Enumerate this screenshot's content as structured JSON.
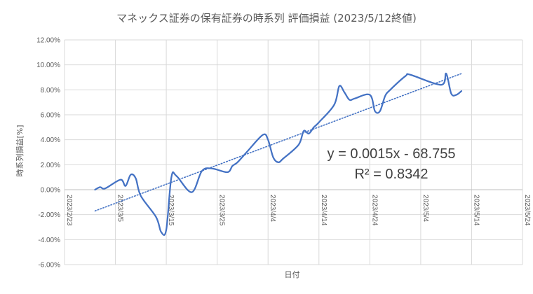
{
  "chart_data": {
    "type": "line",
    "title": "マネックス証券の保有証券の時系列 評価損益 (2023/5/12終値)",
    "xlabel": "日付",
    "ylabel": "時系列損益[%]",
    "ylim": [
      -6,
      12
    ],
    "ystep": 2,
    "ytick_labels": [
      "-6.00%",
      "-4.00%",
      "-2.00%",
      "0.00%",
      "2.00%",
      "4.00%",
      "6.00%",
      "8.00%",
      "10.00%",
      "12.00%"
    ],
    "xlim": [
      "2023/2/23",
      "2023/5/24"
    ],
    "xtick_labels": [
      "2023/2/23",
      "2023/3/5",
      "2023/3/15",
      "2023/3/25",
      "2023/4/4",
      "2023/4/14",
      "2023/4/24",
      "2023/5/4",
      "2023/5/14",
      "2023/5/24"
    ],
    "grid": {
      "vertical": true,
      "horizontal": true
    },
    "colors": {
      "series": "#4472c4",
      "trend": "#4472c4",
      "grid": "#d9d9d9",
      "text": "#595959"
    },
    "series": [
      {
        "x": [
          "2023/3/1",
          "2023/3/2",
          "2023/3/3",
          "2023/3/6",
          "2023/3/7",
          "2023/3/8",
          "2023/3/9",
          "2023/3/10",
          "2023/3/13",
          "2023/3/14",
          "2023/3/15",
          "2023/3/16",
          "2023/3/17",
          "2023/3/20",
          "2023/3/22",
          "2023/3/24",
          "2023/3/27",
          "2023/3/28",
          "2023/3/29",
          "2023/3/31",
          "2023/4/3",
          "2023/4/4",
          "2023/4/5",
          "2023/4/6",
          "2023/4/7",
          "2023/4/10",
          "2023/4/11",
          "2023/4/12",
          "2023/4/13",
          "2023/4/14",
          "2023/4/17",
          "2023/4/18",
          "2023/4/19",
          "2023/4/20",
          "2023/4/21",
          "2023/4/24",
          "2023/4/25",
          "2023/4/26",
          "2023/4/27",
          "2023/4/28",
          "2023/5/1",
          "2023/5/2",
          "2023/5/8",
          "2023/5/9",
          "2023/5/10",
          "2023/5/11",
          "2023/5/12"
        ],
        "values": [
          0.0,
          0.2,
          0.1,
          0.8,
          0.3,
          1.2,
          0.9,
          -0.5,
          -2.2,
          -3.4,
          -3.2,
          1.0,
          1.1,
          -0.2,
          1.5,
          1.7,
          1.4,
          1.9,
          2.2,
          3.1,
          4.4,
          4.0,
          2.6,
          2.2,
          2.5,
          3.6,
          4.7,
          4.5,
          5.0,
          5.4,
          6.8,
          8.3,
          7.8,
          7.2,
          7.3,
          7.6,
          6.3,
          6.3,
          7.5,
          8.0,
          9.1,
          9.2,
          8.4,
          9.3,
          7.7,
          7.6,
          7.9
        ]
      }
    ],
    "trendline": {
      "equation": "y = 0.0015x - 68.755",
      "r_squared": "R² = 0.8342",
      "start": {
        "x": "2023/3/1",
        "y": -1.7
      },
      "end": {
        "x": "2023/5/12",
        "y": 9.3
      }
    }
  }
}
